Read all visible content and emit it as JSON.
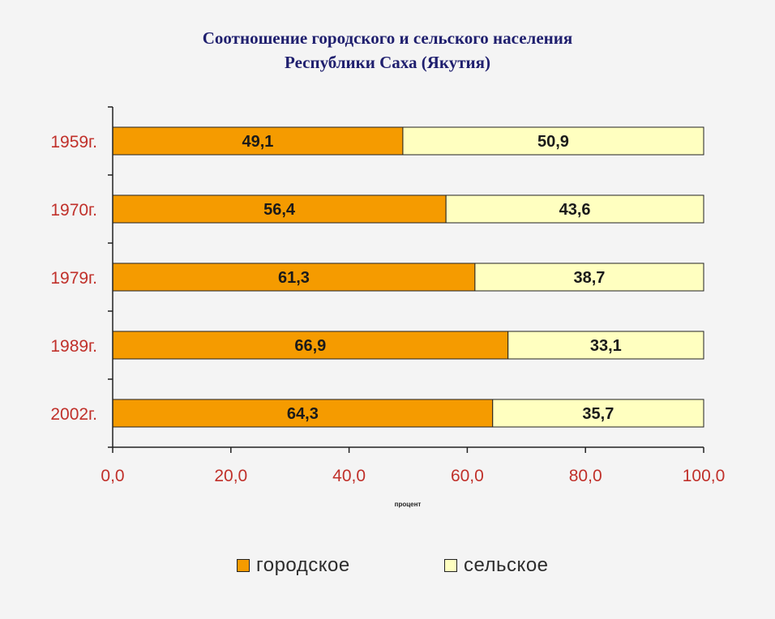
{
  "title_line1": "Соотношение городского и сельского населения",
  "title_line2": "Республики Саха (Якутия)",
  "x_axis_label": "процент",
  "colors": {
    "urban": "#f59b00",
    "rural": "#ffffc0",
    "axis": "#222222",
    "tick_text": "#c0302a"
  },
  "chart_data": {
    "type": "bar",
    "orientation": "horizontal",
    "stacked": true,
    "categories": [
      "1959г.",
      "1970г.",
      "1979г.",
      "1989г.",
      "2002г."
    ],
    "series": [
      {
        "name": "городское",
        "values": [
          49.1,
          56.4,
          61.3,
          66.9,
          64.3
        ],
        "labels": [
          "49,1",
          "56,4",
          "61,3",
          "66,9",
          "64,3"
        ]
      },
      {
        "name": "сельское",
        "values": [
          50.9,
          43.6,
          38.7,
          33.1,
          35.7
        ],
        "labels": [
          "50,9",
          "43,6",
          "38,7",
          "33,1",
          "35,7"
        ]
      }
    ],
    "xlim": [
      0,
      100
    ],
    "xticks": [
      0,
      20,
      40,
      60,
      80,
      100
    ],
    "xtick_labels": [
      "0,0",
      "20,0",
      "40,0",
      "60,0",
      "80,0",
      "100,0"
    ],
    "xlabel": "процент",
    "grid": false,
    "legend_position": "bottom"
  }
}
